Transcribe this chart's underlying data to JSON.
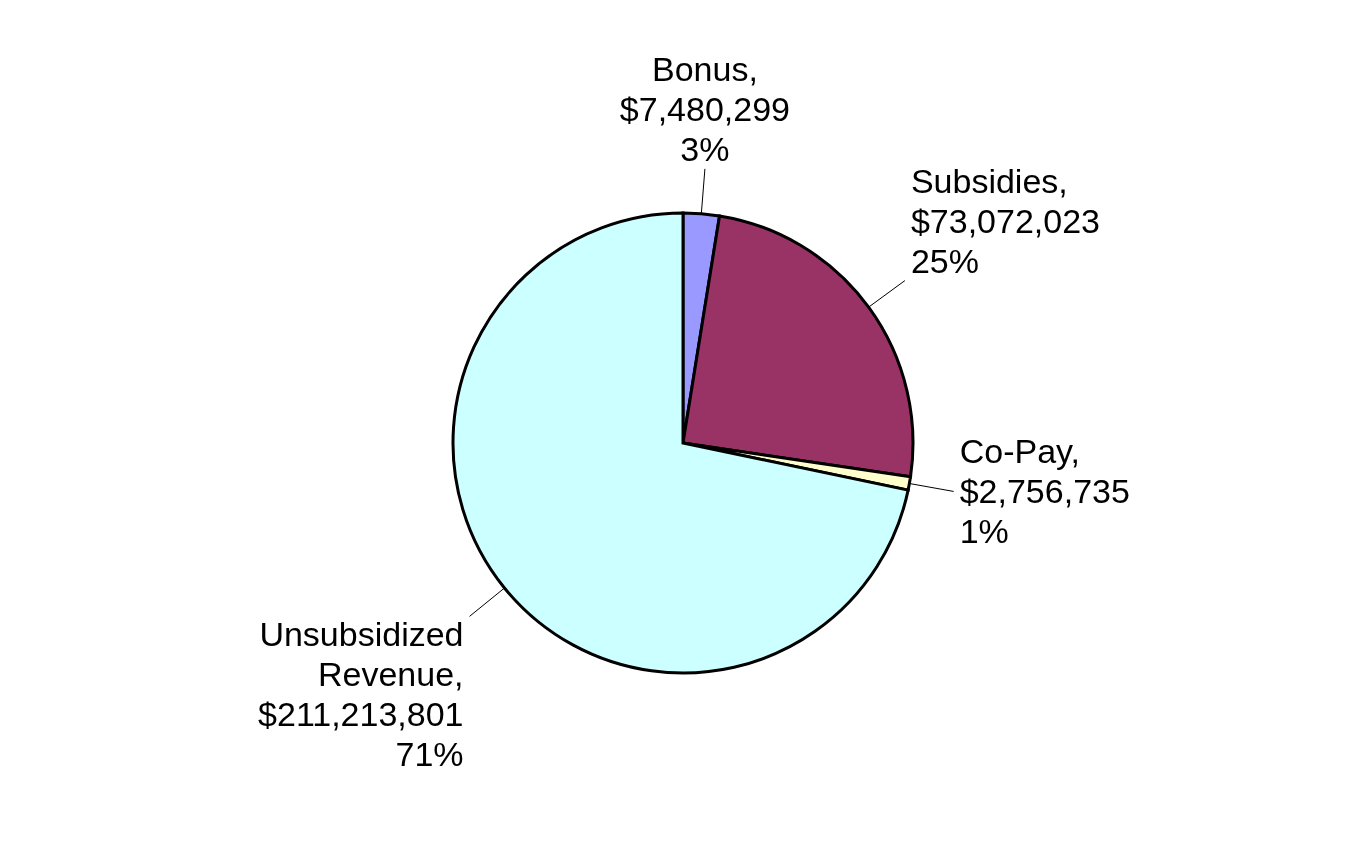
{
  "chart_data": {
    "type": "pie",
    "categories": [
      "Bonus",
      "Subsidies",
      "Co-Pay",
      "Unsubsidized Revenue"
    ],
    "values": [
      7480299,
      73072023,
      2756735,
      211213801
    ],
    "colors": [
      "#9999ff",
      "#993366",
      "#ffffcc",
      "#ccffff"
    ],
    "value_labels": [
      ",\n$7,480,299\n3%",
      ",\n$73,072,023\n25%",
      ",\n$2,756,735\n1%",
      ",\n$211,213,801\n71%"
    ]
  }
}
